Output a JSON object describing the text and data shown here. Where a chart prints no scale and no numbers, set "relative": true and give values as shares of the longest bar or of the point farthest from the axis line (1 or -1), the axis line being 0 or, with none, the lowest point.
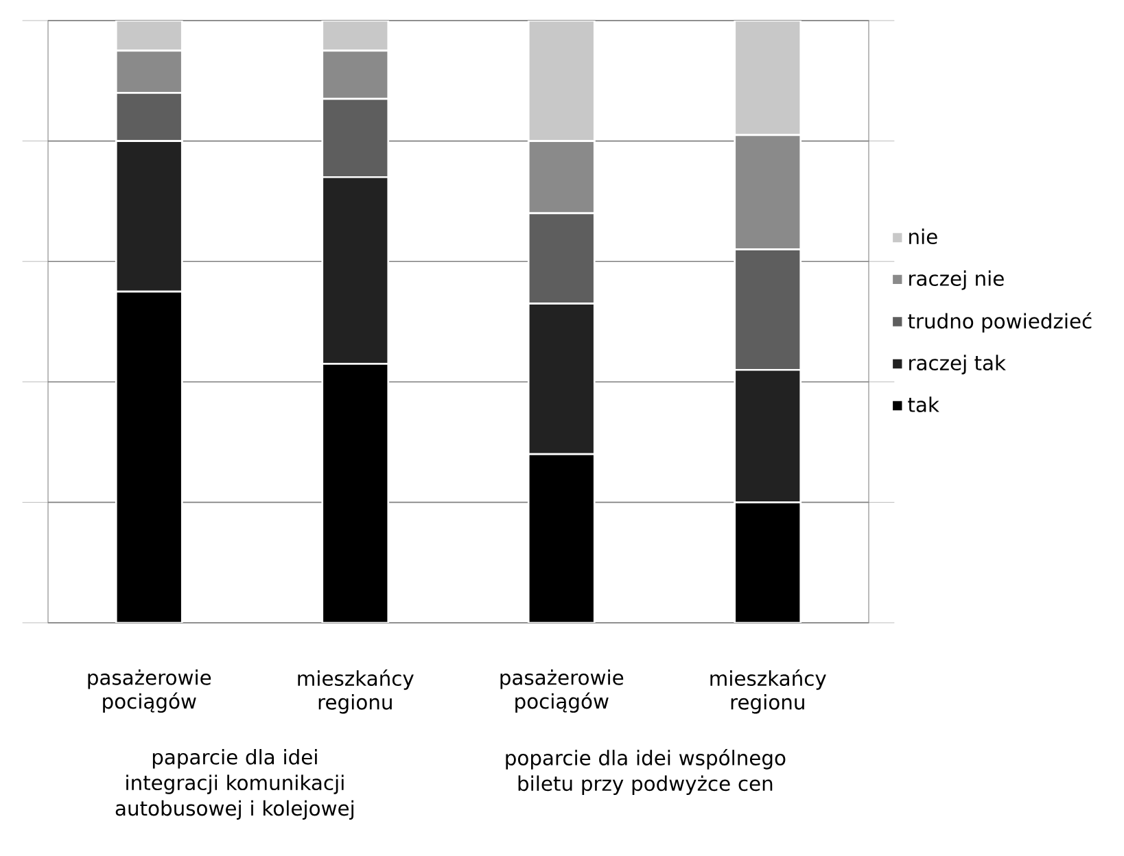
{
  "chart_data": {
    "type": "bar",
    "stacked": true,
    "relative": true,
    "categories": [
      "pasażerowie pociągów",
      "mieszkańcy regionu",
      "pasażerowie pociągów",
      "mieszkańcy regionu"
    ],
    "series": [
      {
        "name": "tak",
        "color": "#000000",
        "values": [
          0.55,
          0.43,
          0.28,
          0.2
        ]
      },
      {
        "name": "raczej tak",
        "color": "#222222",
        "values": [
          0.25,
          0.31,
          0.25,
          0.22
        ]
      },
      {
        "name": "trudno powiedzieć",
        "color": "#5e5e5e",
        "values": [
          0.08,
          0.13,
          0.15,
          0.2
        ]
      },
      {
        "name": "raczej nie",
        "color": "#8a8a8a",
        "values": [
          0.07,
          0.08,
          0.12,
          0.19
        ]
      },
      {
        "name": "nie",
        "color": "#c8c8c8",
        "values": [
          0.05,
          0.05,
          0.2,
          0.19
        ]
      }
    ],
    "grid": "y",
    "legend": "right",
    "annotations": [
      "paparcie dla idei integracji komunikacji autobusowej i kolejowej",
      "poparcie dla idei wspólnego biletu przy podwyżce cen"
    ]
  }
}
